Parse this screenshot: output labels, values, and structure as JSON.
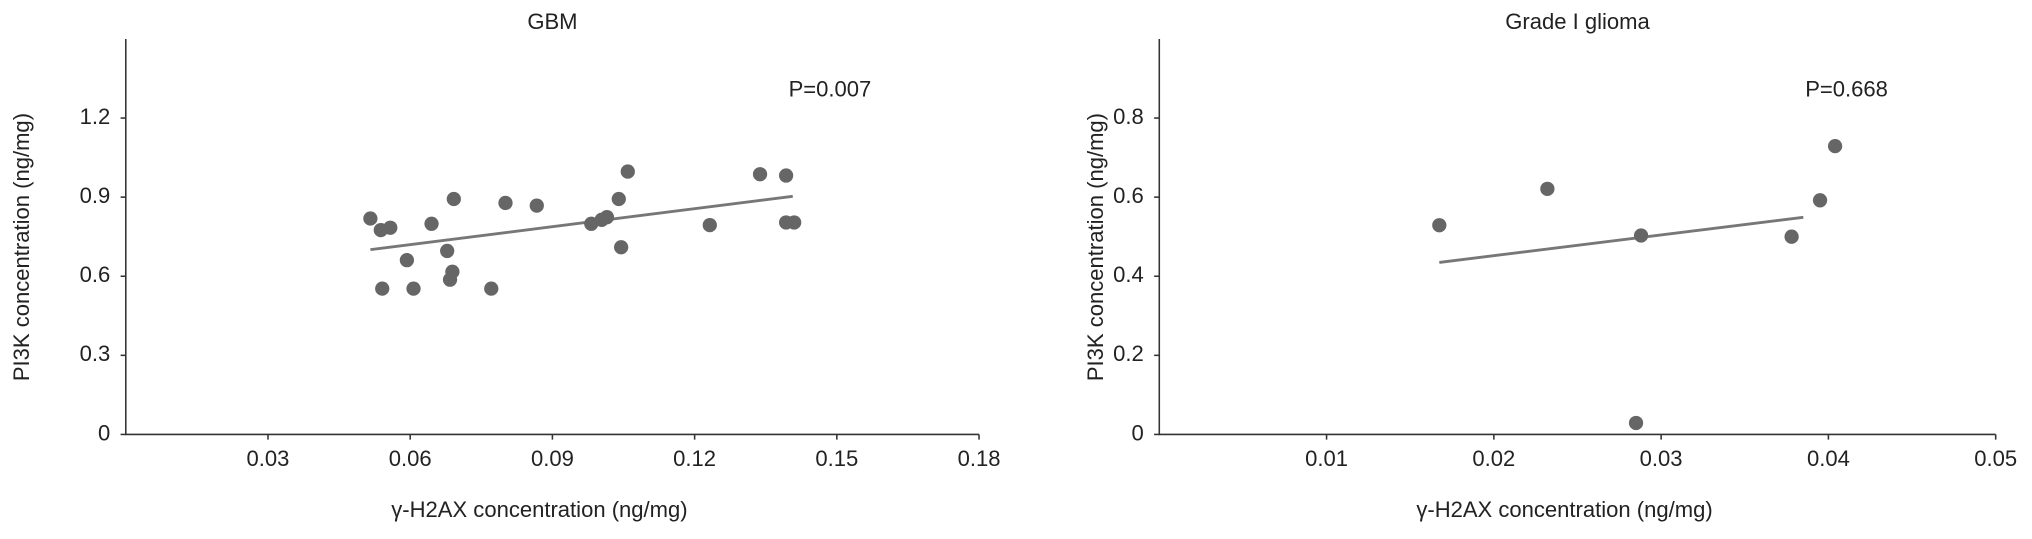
{
  "chart_data": [
    {
      "type": "scatter",
      "title": "GBM",
      "annotation": "P=0.007",
      "x_label": "γ-H2AX concentration (ng/mg)",
      "y_label": "PI3K concentration (ng/mg)",
      "color": "#666666",
      "x": [
        0.0516,
        0.0538,
        0.0558,
        0.0541,
        0.0645,
        0.0593,
        0.0607,
        0.0678,
        0.0692,
        0.0689,
        0.0684,
        0.0771,
        0.0801,
        0.0867,
        0.0982,
        0.1004,
        0.1015,
        0.104,
        0.1045,
        0.1059,
        0.1232,
        0.1338,
        0.1393,
        0.1393,
        0.141
      ],
      "y": [
        0.819,
        0.775,
        0.784,
        0.553,
        0.799,
        0.661,
        0.553,
        0.696,
        0.893,
        0.617,
        0.587,
        0.553,
        0.878,
        0.868,
        0.799,
        0.814,
        0.824,
        0.893,
        0.71,
        0.997,
        0.794,
        0.987,
        0.982,
        0.804,
        0.804
      ],
      "trendline": {
        "x": [
          0.0516,
          0.1407
        ],
        "y": [
          0.701,
          0.903
        ]
      },
      "xlim": [
        0,
        0.18
      ],
      "ylim": [
        0,
        1.5
      ],
      "xticks": [
        0.03,
        0.06,
        0.09,
        0.12,
        0.15,
        0.18
      ],
      "yticks": [
        0,
        0.3,
        0.6,
        0.9,
        1.2
      ]
    },
    {
      "type": "scatter",
      "title": "Grade I glioma",
      "annotation": "P=0.668",
      "x_label": "γ-H2AX concentration (ng/mg)",
      "y_label": "PI3K concentration (ng/mg)",
      "color": "#666666",
      "x": [
        0.01674,
        0.0232,
        0.0288,
        0.0285,
        0.0378,
        0.0395,
        0.0404
      ],
      "y": [
        0.529,
        0.621,
        0.503,
        0.029,
        0.5,
        0.592,
        0.729
      ],
      "trendline": {
        "x": [
          0.01674,
          0.0385
        ],
        "y": [
          0.435,
          0.549
        ]
      },
      "xlim": [
        0,
        0.05
      ],
      "ylim": [
        0,
        1.0
      ],
      "xticks": [
        0.01,
        0.02,
        0.03,
        0.04,
        0.05
      ],
      "yticks": [
        0,
        0.2,
        0.4,
        0.6,
        0.8
      ]
    }
  ]
}
